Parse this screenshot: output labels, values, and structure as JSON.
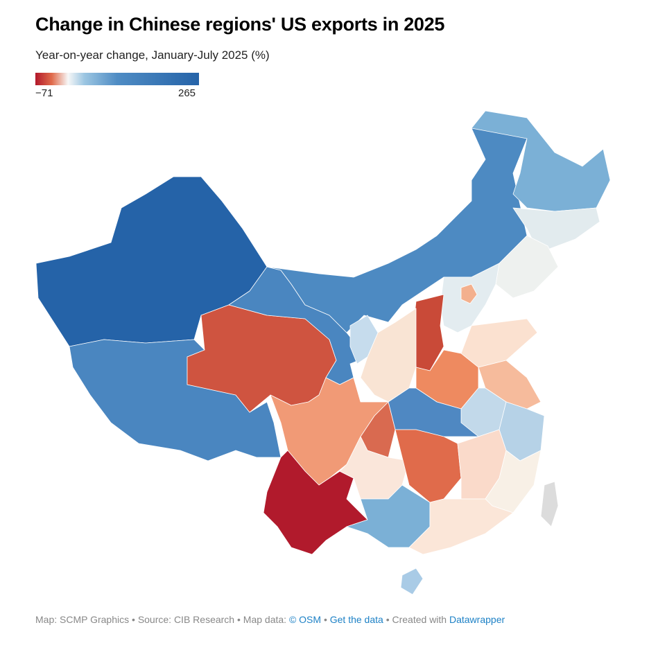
{
  "header": {
    "title": "Change in Chinese regions' US exports in 2025",
    "subtitle": "Year-on-year change, January-July 2025 (%)"
  },
  "legend": {
    "min_label": "−71",
    "max_label": "265",
    "min_value": -71,
    "max_value": 265,
    "colors": [
      "#b2182b",
      "#d6604d",
      "#f4a582",
      "#f7f7f7",
      "#92c5de",
      "#4a86c0",
      "#2563a8"
    ]
  },
  "footer": {
    "map_credit": "Map: SCMP Graphics",
    "sep1": " • ",
    "source": "Source: CIB Research",
    "sep2": " • ",
    "map_data": "Map data: ",
    "osm_link": "© OSM",
    "sep3": "  • ",
    "get_data_link": "Get the data",
    "sep4": " • ",
    "created_with": "Created with ",
    "datawrapper_link": "Datawrapper"
  }
}
